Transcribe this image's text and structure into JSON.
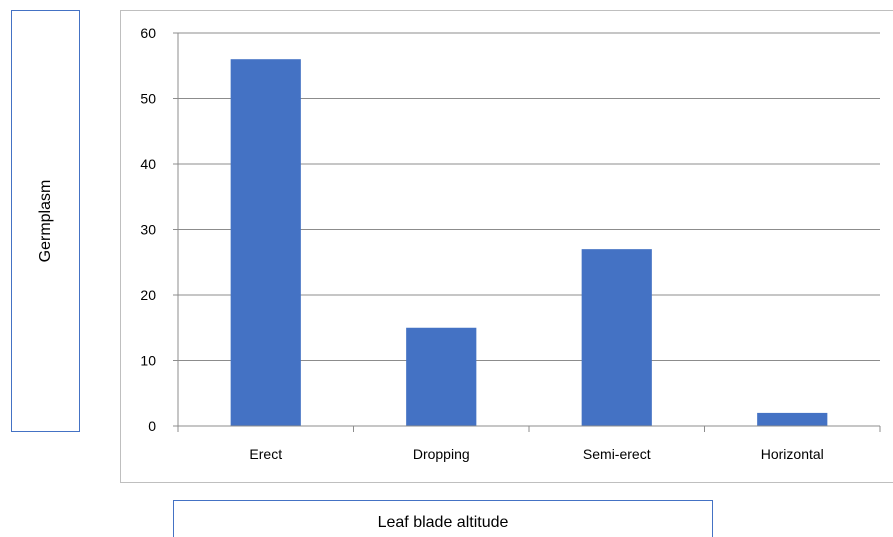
{
  "chart_data": {
    "type": "bar",
    "categories": [
      "Erect",
      "Dropping",
      "Semi-erect",
      "Horizontal"
    ],
    "values": [
      56,
      15,
      27,
      2
    ],
    "xlabel": "Leaf blade altitude",
    "ylabel": "Germplasm",
    "ylim": [
      0,
      60
    ],
    "yticks": [
      0,
      10,
      20,
      30,
      40,
      50,
      60
    ],
    "grid": true,
    "bar_color": "#4472c4",
    "grid_color": "#8c8c8c"
  }
}
